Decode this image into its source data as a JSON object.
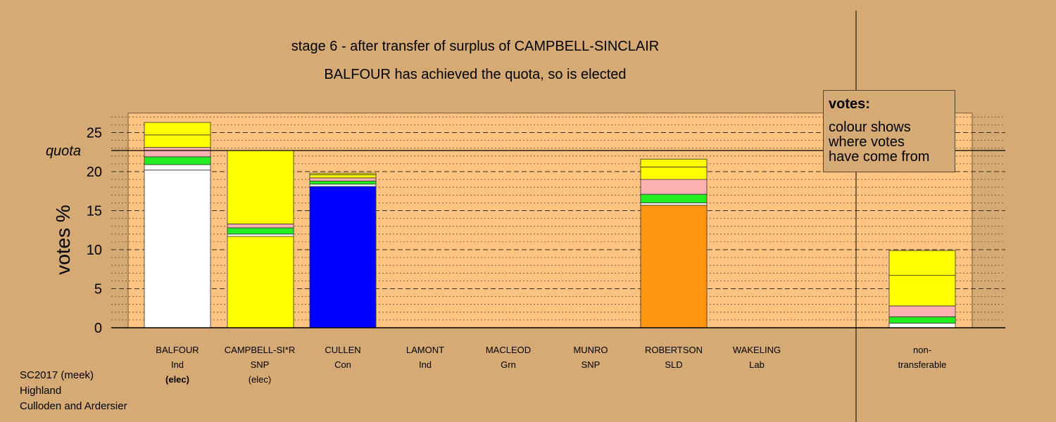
{
  "header": {
    "title": "stage 6 - after transfer of surplus of CAMPBELL-SINCLAIR",
    "subtitle": "BALFOUR has achieved the quota, so is elected"
  },
  "legend": {
    "title": "votes:",
    "lines": [
      "colour shows",
      "where votes",
      "have come from"
    ]
  },
  "footer": {
    "line1": "SC2017 (meek)",
    "line2": "Highland",
    "line3": "Culloden and Ardersier"
  },
  "colors": {
    "background": "#d6aa74",
    "plot_area": "#ffc382",
    "balfour": "#ffffff",
    "campbell_sinclair": "#ffff00",
    "cullen": "#0000ff",
    "robertson": "#ff9410",
    "transfer_green": "#22ee22",
    "transfer_pink": "#ffb0b0",
    "transfer_yellow": "#ffff00"
  },
  "chart_data": {
    "type": "bar",
    "stacked": true,
    "ylabel": "votes %",
    "ylim": [
      0,
      27.5
    ],
    "yticks": [
      0,
      5,
      10,
      15,
      20,
      25
    ],
    "quota": 22.7,
    "quota_label": "quota",
    "grid": true,
    "candidates": [
      {
        "name": "BALFOUR",
        "party": "Ind",
        "status": "(elec)",
        "status_bold": true,
        "segments": [
          {
            "value": 20.2,
            "color": "#ffffff"
          },
          {
            "value": 0.7,
            "color": "#ffffff"
          },
          {
            "value": 1.0,
            "color": "#22ee22"
          },
          {
            "value": 1.2,
            "color": "#ffb0b0"
          },
          {
            "value": 1.6,
            "color": "#ffff00"
          },
          {
            "value": 1.6,
            "color": "#ffff00"
          }
        ]
      },
      {
        "name": "CAMPBELL-SI*R",
        "party": "SNP",
        "status": "(elec)",
        "status_bold": false,
        "segments": [
          {
            "value": 11.7,
            "color": "#ffff00"
          },
          {
            "value": 0.3,
            "color": "#ffffff"
          },
          {
            "value": 0.8,
            "color": "#22ee22"
          },
          {
            "value": 0.5,
            "color": "#ffb0b0"
          },
          {
            "value": 9.4,
            "color": "#ffff00"
          }
        ]
      },
      {
        "name": "CULLEN",
        "party": "Con",
        "status": "",
        "status_bold": false,
        "segments": [
          {
            "value": 18.1,
            "color": "#0000ff"
          },
          {
            "value": 0.3,
            "color": "#ffffff"
          },
          {
            "value": 0.4,
            "color": "#22ee22"
          },
          {
            "value": 0.4,
            "color": "#ffb0b0"
          },
          {
            "value": 0.4,
            "color": "#ffff00"
          },
          {
            "value": 0.2,
            "color": "#ffff00"
          }
        ]
      },
      {
        "name": "LAMONT",
        "party": "Ind",
        "status": "",
        "status_bold": false,
        "segments": []
      },
      {
        "name": "MACLEOD",
        "party": "Grn",
        "status": "",
        "status_bold": false,
        "segments": []
      },
      {
        "name": "MUNRO",
        "party": "SNP",
        "status": "",
        "status_bold": false,
        "segments": []
      },
      {
        "name": "ROBERTSON",
        "party": "SLD",
        "status": "",
        "status_bold": false,
        "segments": [
          {
            "value": 15.7,
            "color": "#ff9410"
          },
          {
            "value": 0.3,
            "color": "#ffffff"
          },
          {
            "value": 1.1,
            "color": "#22ee22"
          },
          {
            "value": 1.9,
            "color": "#ffb0b0"
          },
          {
            "value": 1.6,
            "color": "#ffff00"
          },
          {
            "value": 1.0,
            "color": "#ffff00"
          }
        ]
      },
      {
        "name": "WAKELING",
        "party": "Lab",
        "status": "",
        "status_bold": false,
        "segments": []
      }
    ],
    "non_transferable": {
      "label_line1": "non-",
      "label_line2": "transferable",
      "segments": [
        {
          "value": 0.6,
          "color": "#ffffff"
        },
        {
          "value": 0.8,
          "color": "#22ee22"
        },
        {
          "value": 1.4,
          "color": "#ffb0b0"
        },
        {
          "value": 3.9,
          "color": "#ffff00"
        },
        {
          "value": 3.2,
          "color": "#ffff00"
        }
      ]
    }
  }
}
